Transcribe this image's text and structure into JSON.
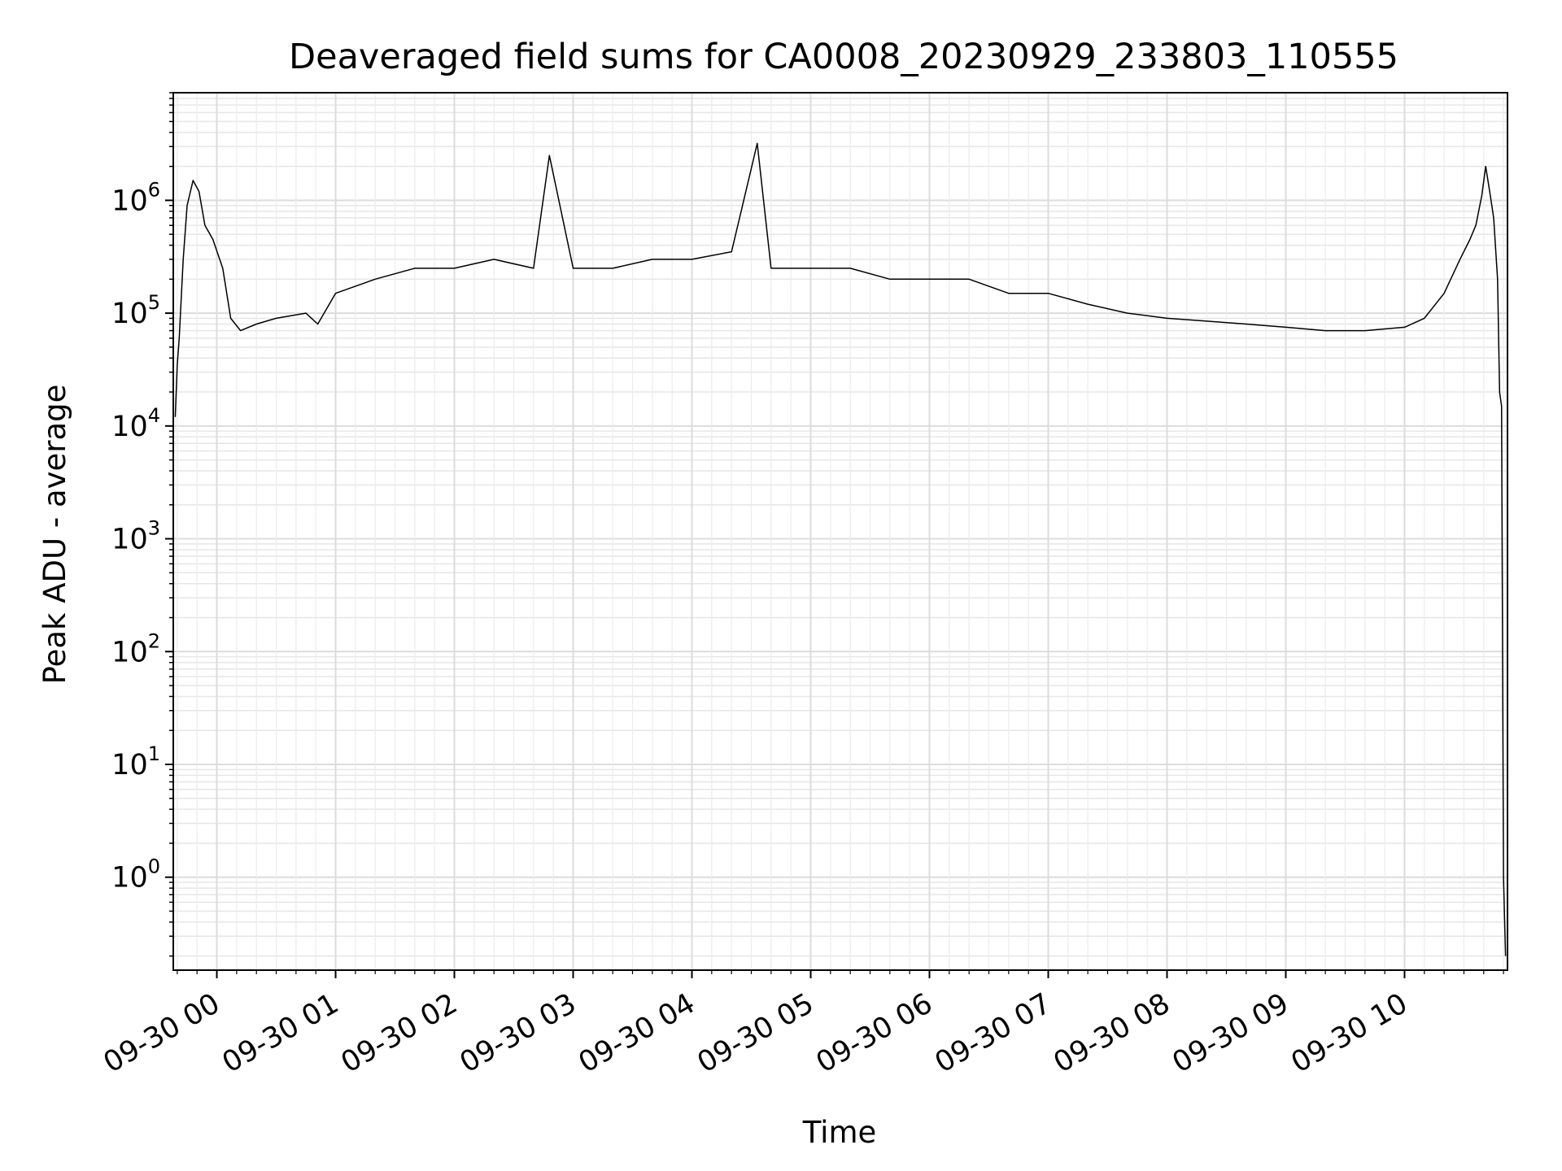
{
  "chart_data": {
    "type": "line",
    "title": "Deaveraged field sums for CA0008_20230929_233803_110555",
    "xlabel": "Time",
    "ylabel": "Peak ADU - average",
    "y_scale": "log",
    "ylim": [
      0.15,
      9000000
    ],
    "xlim": [
      "2023-09-29 23:38",
      "2023-09-30 10:52"
    ],
    "grid": "on (major and minor, both axes)",
    "line_color": "#000000",
    "x_ticks": [
      {
        "value": "2023-09-30 00:00",
        "label": "09-30 00"
      },
      {
        "value": "2023-09-30 01:00",
        "label": "09-30 01"
      },
      {
        "value": "2023-09-30 02:00",
        "label": "09-30 02"
      },
      {
        "value": "2023-09-30 03:00",
        "label": "09-30 03"
      },
      {
        "value": "2023-09-30 04:00",
        "label": "09-30 04"
      },
      {
        "value": "2023-09-30 05:00",
        "label": "09-30 05"
      },
      {
        "value": "2023-09-30 06:00",
        "label": "09-30 06"
      },
      {
        "value": "2023-09-30 07:00",
        "label": "09-30 07"
      },
      {
        "value": "2023-09-30 08:00",
        "label": "09-30 08"
      },
      {
        "value": "2023-09-30 09:00",
        "label": "09-30 09"
      },
      {
        "value": "2023-09-30 10:00",
        "label": "09-30 10"
      }
    ],
    "y_ticks": [
      {
        "value": 1,
        "base": "10",
        "exp": "0"
      },
      {
        "value": 10,
        "base": "10",
        "exp": "1"
      },
      {
        "value": 100,
        "base": "10",
        "exp": "2"
      },
      {
        "value": 1000,
        "base": "10",
        "exp": "3"
      },
      {
        "value": 10000,
        "base": "10",
        "exp": "4"
      },
      {
        "value": 100000,
        "base": "10",
        "exp": "5"
      },
      {
        "value": 1000000,
        "base": "10",
        "exp": "6"
      }
    ],
    "series": [
      {
        "x": [
          "2023-09-29 23:39",
          "2023-09-29 23:40",
          "2023-09-29 23:41",
          "2023-09-29 23:43",
          "2023-09-29 23:45",
          "2023-09-29 23:48",
          "2023-09-29 23:51",
          "2023-09-29 23:54",
          "2023-09-29 23:58",
          "2023-09-30 00:03",
          "2023-09-30 00:07",
          "2023-09-30 00:12",
          "2023-09-30 00:20",
          "2023-09-30 00:30",
          "2023-09-30 00:45",
          "2023-09-30 00:51",
          "2023-09-30 01:00",
          "2023-09-30 01:20",
          "2023-09-30 01:40",
          "2023-09-30 02:00",
          "2023-09-30 02:20",
          "2023-09-30 02:40",
          "2023-09-30 02:48",
          "2023-09-30 03:00",
          "2023-09-30 03:20",
          "2023-09-30 03:40",
          "2023-09-30 04:00",
          "2023-09-30 04:20",
          "2023-09-30 04:33",
          "2023-09-30 04:40",
          "2023-09-30 05:00",
          "2023-09-30 05:20",
          "2023-09-30 05:40",
          "2023-09-30 06:00",
          "2023-09-30 06:20",
          "2023-09-30 06:40",
          "2023-09-30 07:00",
          "2023-09-30 07:20",
          "2023-09-30 07:40",
          "2023-09-30 08:00",
          "2023-09-30 08:20",
          "2023-09-30 08:40",
          "2023-09-30 09:00",
          "2023-09-30 09:20",
          "2023-09-30 09:40",
          "2023-09-30 10:00",
          "2023-09-30 10:10",
          "2023-09-30 10:20",
          "2023-09-30 10:28",
          "2023-09-30 10:33",
          "2023-09-30 10:36",
          "2023-09-30 10:39",
          "2023-09-30 10:41",
          "2023-09-30 10:43",
          "2023-09-30 10:45",
          "2023-09-30 10:47",
          "2023-09-30 10:48",
          "2023-09-30 10:49",
          "2023-09-30 10:50",
          "2023-09-30 10:51"
        ],
        "y": [
          12000,
          35000,
          60000,
          300000,
          900000,
          1500000,
          1200000,
          600000,
          450000,
          250000,
          90000,
          70000,
          80000,
          90000,
          100000,
          80000,
          150000,
          200000,
          250000,
          250000,
          300000,
          250000,
          2500000,
          250000,
          250000,
          300000,
          300000,
          350000,
          3200000,
          250000,
          250000,
          250000,
          200000,
          200000,
          200000,
          150000,
          150000,
          120000,
          100000,
          90000,
          85000,
          80000,
          75000,
          70000,
          70000,
          75000,
          90000,
          150000,
          300000,
          450000,
          600000,
          1100000,
          2000000,
          1200000,
          700000,
          200000,
          20000,
          15000,
          1,
          0.2
        ]
      }
    ]
  }
}
